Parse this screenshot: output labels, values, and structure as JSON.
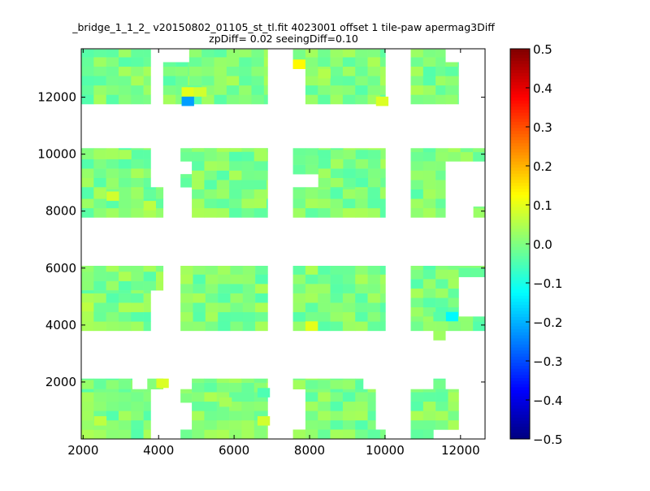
{
  "chart_data": {
    "type": "heatmap",
    "title": "_bridge_1_1_2_ v20150802_01105_st_tl.fit 4023001 offset 1 tile-paw apermag3Diff",
    "subtitle": "zpDiff= 0.02 seeingDiff=0.10",
    "xlabel": "",
    "ylabel": "",
    "xlim": [
      1950,
      12650
    ],
    "ylim": [
      0,
      13700
    ],
    "cell_size": 330,
    "x_ticks": [
      2000,
      4000,
      6000,
      8000,
      10000,
      12000
    ],
    "y_ticks": [
      2000,
      4000,
      6000,
      8000,
      10000,
      12000
    ],
    "x_tick_labels": [
      "2000",
      "4000",
      "6000",
      "8000",
      "10000",
      "12000"
    ],
    "y_tick_labels": [
      "2000",
      "4000",
      "6000",
      "8000",
      "10000",
      "12000"
    ],
    "colorbar": {
      "colormap": "jet",
      "vmin": -0.5,
      "vmax": 0.5,
      "ticks": [
        0.5,
        0.4,
        0.3,
        0.2,
        0.1,
        0.0,
        -0.1,
        -0.2,
        -0.3,
        -0.4,
        -0.5
      ],
      "tick_labels": [
        "0.5",
        "0.4",
        "0.3",
        "0.2",
        "0.1",
        "0.0",
        "−0.1",
        "−0.2",
        "−0.3",
        "−0.4",
        "−0.5"
      ]
    },
    "base_value": 0.0,
    "blocks": [
      {
        "x": [
          1950,
          3790
        ],
        "y": [
          11760,
          13680
        ]
      },
      {
        "x": [
          4120,
          4810
        ],
        "y": [
          11760,
          13230
        ]
      },
      {
        "x": [
          4810,
          6890
        ],
        "y": [
          11760,
          13680
        ]
      },
      {
        "x": [
          7560,
          7890
        ],
        "y": [
          13000,
          13680
        ]
      },
      {
        "x": [
          7890,
          10010
        ],
        "y": [
          11760,
          13680
        ]
      },
      {
        "x": [
          10680,
          11600
        ],
        "y": [
          11760,
          13680
        ]
      },
      {
        "x": [
          11600,
          11950
        ],
        "y": [
          11760,
          13230
        ]
      },
      {
        "x": [
          1950,
          3790
        ],
        "y": [
          8840,
          10210
        ]
      },
      {
        "x": [
          1950,
          4120
        ],
        "y": [
          7780,
          8840
        ]
      },
      {
        "x": [
          4580,
          6890
        ],
        "y": [
          9750,
          10210
        ]
      },
      {
        "x": [
          4580,
          4880
        ],
        "y": [
          8840,
          9300
        ]
      },
      {
        "x": [
          4880,
          6890
        ],
        "y": [
          7780,
          10210
        ]
      },
      {
        "x": [
          7560,
          8230
        ],
        "y": [
          9300,
          10210
        ]
      },
      {
        "x": [
          8230,
          10010
        ],
        "y": [
          8840,
          10210
        ]
      },
      {
        "x": [
          7560,
          10010
        ],
        "y": [
          7780,
          8840
        ]
      },
      {
        "x": [
          10680,
          12650
        ],
        "y": [
          9750,
          10210
        ]
      },
      {
        "x": [
          10680,
          11600
        ],
        "y": [
          7780,
          9750
        ]
      },
      {
        "x": [
          12340,
          12650
        ],
        "y": [
          7780,
          8160
        ]
      },
      {
        "x": [
          1950,
          4120
        ],
        "y": [
          5220,
          6080
        ]
      },
      {
        "x": [
          1950,
          3790
        ],
        "y": [
          3800,
          5220
        ]
      },
      {
        "x": [
          4580,
          6890
        ],
        "y": [
          3800,
          6080
        ]
      },
      {
        "x": [
          7560,
          10010
        ],
        "y": [
          3800,
          6080
        ]
      },
      {
        "x": [
          10680,
          11950
        ],
        "y": [
          4300,
          6080
        ]
      },
      {
        "x": [
          11950,
          12650
        ],
        "y": [
          5690,
          6080
        ]
      },
      {
        "x": [
          10680,
          12650
        ],
        "y": [
          3800,
          4300
        ]
      },
      {
        "x": [
          11280,
          11600
        ],
        "y": [
          3470,
          3800
        ]
      },
      {
        "x": [
          1950,
          3300
        ],
        "y": [
          1750,
          2120
        ]
      },
      {
        "x": [
          3700,
          4120
        ],
        "y": [
          1750,
          2120
        ]
      },
      {
        "x": [
          1950,
          3790
        ],
        "y": [
          0,
          1750
        ]
      },
      {
        "x": [
          4580,
          4880
        ],
        "y": [
          1280,
          1750
        ]
      },
      {
        "x": [
          4880,
          6890
        ],
        "y": [
          0,
          2120
        ]
      },
      {
        "x": [
          4580,
          4880
        ],
        "y": [
          0,
          330
        ]
      },
      {
        "x": [
          7560,
          9420
        ],
        "y": [
          1750,
          2120
        ]
      },
      {
        "x": [
          7890,
          9750
        ],
        "y": [
          330,
          1750
        ]
      },
      {
        "x": [
          7560,
          10010
        ],
        "y": [
          0,
          330
        ]
      },
      {
        "x": [
          11280,
          11600
        ],
        "y": [
          1750,
          2120
        ]
      },
      {
        "x": [
          10680,
          11950
        ],
        "y": [
          330,
          1750
        ]
      },
      {
        "x": [
          10680,
          11280
        ],
        "y": [
          0,
          330
        ]
      }
    ],
    "highlights": [
      {
        "x": 7560,
        "y": 12990,
        "value": 0.13
      },
      {
        "x": 4610,
        "y": 12020,
        "value": 0.1
      },
      {
        "x": 4940,
        "y": 12020,
        "value": 0.08
      },
      {
        "x": 4610,
        "y": 11690,
        "value": -0.22
      },
      {
        "x": 9760,
        "y": 11690,
        "value": 0.09
      },
      {
        "x": 2620,
        "y": 8360,
        "value": 0.08
      },
      {
        "x": 3600,
        "y": 8030,
        "value": 0.06
      },
      {
        "x": 7890,
        "y": 3800,
        "value": 0.1
      },
      {
        "x": 11610,
        "y": 4130,
        "value": -0.13
      },
      {
        "x": 11280,
        "y": 4130,
        "value": -0.04
      },
      {
        "x": 3940,
        "y": 1790,
        "value": 0.09
      },
      {
        "x": 6620,
        "y": 1460,
        "value": -0.05
      },
      {
        "x": 6620,
        "y": 470,
        "value": 0.08
      },
      {
        "x": 2290,
        "y": 470,
        "value": 0.06
      },
      {
        "x": 1950,
        "y": 4460,
        "value": 0.06
      },
      {
        "x": 2950,
        "y": 9820,
        "value": 0.04
      },
      {
        "x": 5610,
        "y": 1130,
        "value": 0.04
      },
      {
        "x": 8230,
        "y": 12660,
        "value": 0.05
      }
    ]
  }
}
